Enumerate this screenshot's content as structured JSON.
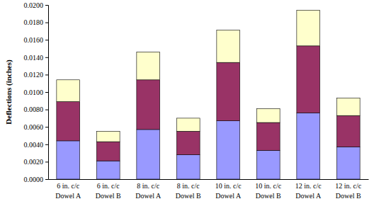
{
  "chart_data": {
    "type": "bar",
    "stacked": true,
    "grid": false,
    "y_label": "Deflections (inches)",
    "categories": [
      "6 in. c/c\nDowel A",
      "6 in. c/c\nDowel B",
      "8 in. c/c\nDowel A",
      "8 in. c/c\nDowel B",
      "10 in. c/c\nDowel A",
      "10 in. c/c\nDowel B",
      "12 in. c/c\nDowel A",
      "12 in. c/c\nDowel B"
    ],
    "series": [
      {
        "color": "#9999ff",
        "values": [
          0.0044,
          0.0021,
          0.0057,
          0.0028,
          0.0067,
          0.0033,
          0.0076,
          0.0037
        ]
      },
      {
        "color": "#993366",
        "values": [
          0.0045,
          0.0022,
          0.0057,
          0.0027,
          0.0067,
          0.0032,
          0.0077,
          0.0036
        ]
      },
      {
        "color": "#ffffcc",
        "values": [
          0.0025,
          0.0012,
          0.0032,
          0.0015,
          0.0037,
          0.0016,
          0.0041,
          0.002
        ]
      }
    ],
    "ylim": [
      0,
      0.02
    ],
    "yticks": [
      {
        "value": 0,
        "label": "0.0000"
      },
      {
        "value": 0.002,
        "label": "0.0020"
      },
      {
        "value": 0.004,
        "label": "0.0040"
      },
      {
        "value": 0.006,
        "label": "0.0060"
      },
      {
        "value": 0.008,
        "label": "0.0080"
      },
      {
        "value": 0.01,
        "label": "0.0100"
      },
      {
        "value": 0.012,
        "label": "0.0120"
      },
      {
        "value": 0.014,
        "label": "0.0140"
      },
      {
        "value": 0.016,
        "label": "0.0160"
      },
      {
        "value": 0.018,
        "label": "0.0180"
      },
      {
        "value": 0.02,
        "label": "0.0200"
      }
    ]
  }
}
